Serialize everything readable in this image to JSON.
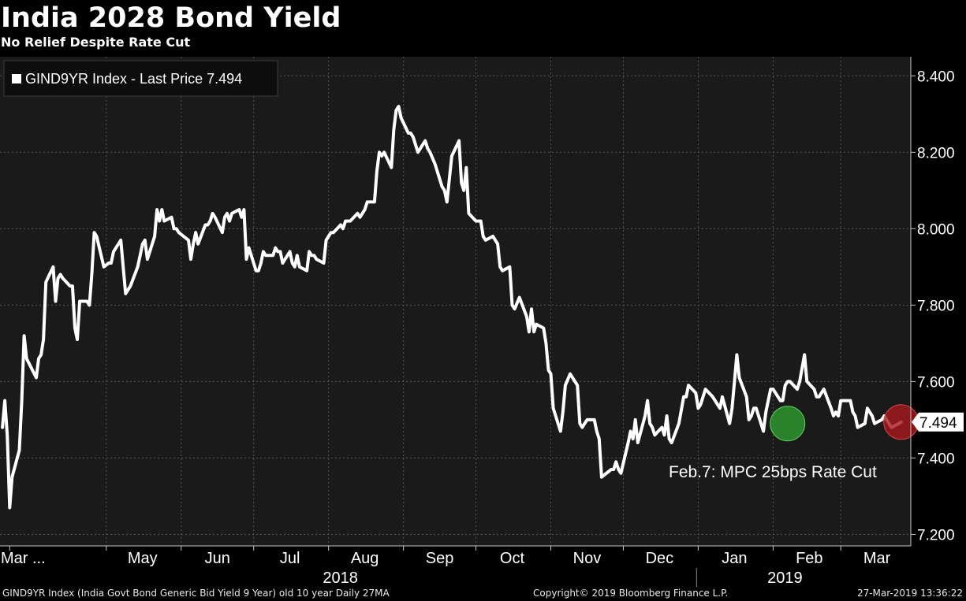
{
  "header": {
    "title": "India 2028 Bond Yield",
    "subtitle": "No Relief Despite Rate Cut"
  },
  "footer": {
    "left": "GIND9YR Index (India Govt Bond Generic Bid Yield 9 Year) old 10 year  Daily 27MA",
    "middle": "Copyright© 2019 Bloomberg Finance L.P.",
    "right": "27-Mar-2019 13:36:22"
  },
  "colors": {
    "background": "#000000",
    "plot_background": "#1a1a1a",
    "line": "#ffffff",
    "rate_cut_marker": "#2e9e2e",
    "last_price_marker": "#a8191b"
  },
  "chart_data": {
    "type": "line",
    "title": "India 2028 Bond Yield",
    "subtitle": "No Relief Despite Rate Cut",
    "ylim": [
      7.17,
      8.45
    ],
    "y_ticks": [
      7.2,
      7.4,
      7.6,
      7.8,
      8.0,
      8.2,
      8.4
    ],
    "y_tick_labels": [
      "7.200",
      "7.400",
      "7.600",
      "7.800",
      "8.000",
      "8.200",
      "8.400"
    ],
    "grid": true,
    "legend": {
      "placement": "top-left",
      "entries": [
        "GIND9YR Index - Last Price 7.494"
      ]
    },
    "last_price_label": "7.494",
    "x_month_labels": [
      {
        "label": "Mar ...",
        "date": "2018-03-22"
      },
      {
        "label": "May",
        "date": "2018-05-01"
      },
      {
        "label": "Jun",
        "date": "2018-06-01"
      },
      {
        "label": "Jul",
        "date": "2018-07-01"
      },
      {
        "label": "Aug",
        "date": "2018-08-01"
      },
      {
        "label": "Sep",
        "date": "2018-09-01"
      },
      {
        "label": "Oct",
        "date": "2018-10-01"
      },
      {
        "label": "Nov",
        "date": "2018-11-01"
      },
      {
        "label": "Dec",
        "date": "2018-12-01"
      },
      {
        "label": "Jan",
        "date": "2019-01-01"
      },
      {
        "label": "Feb",
        "date": "2019-02-01"
      },
      {
        "label": "Mar",
        "date": "2019-03-01"
      }
    ],
    "x_year_labels": [
      {
        "label": "2018",
        "date": "2018-08-01"
      },
      {
        "label": "2019",
        "date": "2019-02-01"
      }
    ],
    "year_separator_date": "2018-12-31",
    "annotations": [
      {
        "text": "Feb.7: MPC 25bps Rate Cut",
        "date": "2019-02-07",
        "value": 7.49,
        "marker": "rate_cut"
      },
      {
        "text": "",
        "date": "2019-03-26",
        "value": 7.494,
        "marker": "last_price"
      }
    ],
    "series": [
      {
        "name": "GIND9YR Index - Last Price 7.494",
        "points": [
          [
            "2018-03-19",
            7.48
          ],
          [
            "2018-03-20",
            7.55
          ],
          [
            "2018-03-21",
            7.46
          ],
          [
            "2018-03-22",
            7.27
          ],
          [
            "2018-03-23",
            7.35
          ],
          [
            "2018-03-26",
            7.42
          ],
          [
            "2018-03-27",
            7.55
          ],
          [
            "2018-03-28",
            7.72
          ],
          [
            "2018-03-29",
            7.66
          ],
          [
            "2018-04-02",
            7.61
          ],
          [
            "2018-04-03",
            7.66
          ],
          [
            "2018-04-04",
            7.67
          ],
          [
            "2018-04-05",
            7.71
          ],
          [
            "2018-04-06",
            7.86
          ],
          [
            "2018-04-09",
            7.9
          ],
          [
            "2018-04-10",
            7.81
          ],
          [
            "2018-04-11",
            7.87
          ],
          [
            "2018-04-12",
            7.88
          ],
          [
            "2018-04-13",
            7.87
          ],
          [
            "2018-04-16",
            7.85
          ],
          [
            "2018-04-17",
            7.85
          ],
          [
            "2018-04-18",
            7.74
          ],
          [
            "2018-04-19",
            7.71
          ],
          [
            "2018-04-20",
            7.81
          ],
          [
            "2018-04-23",
            7.81
          ],
          [
            "2018-04-24",
            7.8
          ],
          [
            "2018-04-25",
            7.88
          ],
          [
            "2018-04-26",
            7.99
          ],
          [
            "2018-04-27",
            7.98
          ],
          [
            "2018-04-30",
            7.9
          ],
          [
            "2018-05-02",
            7.91
          ],
          [
            "2018-05-03",
            7.91
          ],
          [
            "2018-05-04",
            7.94
          ],
          [
            "2018-05-07",
            7.97
          ],
          [
            "2018-05-08",
            7.9
          ],
          [
            "2018-05-09",
            7.83
          ],
          [
            "2018-05-10",
            7.84
          ],
          [
            "2018-05-11",
            7.85
          ],
          [
            "2018-05-14",
            7.9
          ],
          [
            "2018-05-15",
            7.93
          ],
          [
            "2018-05-16",
            7.96
          ],
          [
            "2018-05-17",
            7.97
          ],
          [
            "2018-05-18",
            7.92
          ],
          [
            "2018-05-21",
            7.98
          ],
          [
            "2018-05-22",
            8.05
          ],
          [
            "2018-05-23",
            8.02
          ],
          [
            "2018-05-24",
            8.05
          ],
          [
            "2018-05-25",
            8.02
          ],
          [
            "2018-05-28",
            8.03
          ],
          [
            "2018-05-29",
            8.0
          ],
          [
            "2018-05-30",
            8.0
          ],
          [
            "2018-05-31",
            7.99
          ],
          [
            "2018-06-04",
            7.97
          ],
          [
            "2018-06-05",
            7.92
          ],
          [
            "2018-06-06",
            7.96
          ],
          [
            "2018-06-07",
            7.99
          ],
          [
            "2018-06-08",
            7.96
          ],
          [
            "2018-06-11",
            8.01
          ],
          [
            "2018-06-12",
            8.01
          ],
          [
            "2018-06-13",
            8.02
          ],
          [
            "2018-06-14",
            8.04
          ],
          [
            "2018-06-15",
            8.03
          ],
          [
            "2018-06-18",
            7.99
          ],
          [
            "2018-06-19",
            8.03
          ],
          [
            "2018-06-20",
            8.04
          ],
          [
            "2018-06-21",
            8.02
          ],
          [
            "2018-06-22",
            8.04
          ],
          [
            "2018-06-25",
            8.05
          ],
          [
            "2018-06-26",
            8.03
          ],
          [
            "2018-06-27",
            8.05
          ],
          [
            "2018-06-28",
            7.92
          ],
          [
            "2018-06-29",
            7.95
          ],
          [
            "2018-07-02",
            7.89
          ],
          [
            "2018-07-03",
            7.89
          ],
          [
            "2018-07-04",
            7.91
          ],
          [
            "2018-07-05",
            7.94
          ],
          [
            "2018-07-06",
            7.93
          ],
          [
            "2018-07-09",
            7.93
          ],
          [
            "2018-07-10",
            7.95
          ],
          [
            "2018-07-11",
            7.94
          ],
          [
            "2018-07-12",
            7.94
          ],
          [
            "2018-07-13",
            7.91
          ],
          [
            "2018-07-16",
            7.94
          ],
          [
            "2018-07-17",
            7.91
          ],
          [
            "2018-07-18",
            7.9
          ],
          [
            "2018-07-19",
            7.93
          ],
          [
            "2018-07-20",
            7.9
          ],
          [
            "2018-07-23",
            7.89
          ],
          [
            "2018-07-24",
            7.94
          ],
          [
            "2018-07-25",
            7.93
          ],
          [
            "2018-07-26",
            7.93
          ],
          [
            "2018-07-27",
            7.92
          ],
          [
            "2018-07-30",
            7.91
          ],
          [
            "2018-07-31",
            7.97
          ],
          [
            "2018-08-01",
            7.98
          ],
          [
            "2018-08-02",
            7.99
          ],
          [
            "2018-08-03",
            7.99
          ],
          [
            "2018-08-06",
            8.01
          ],
          [
            "2018-08-07",
            8.0
          ],
          [
            "2018-08-08",
            8.02
          ],
          [
            "2018-08-09",
            8.02
          ],
          [
            "2018-08-10",
            8.02
          ],
          [
            "2018-08-13",
            8.04
          ],
          [
            "2018-08-14",
            8.03
          ],
          [
            "2018-08-16",
            8.05
          ],
          [
            "2018-08-17",
            8.07
          ],
          [
            "2018-08-20",
            8.07
          ],
          [
            "2018-08-21",
            8.15
          ],
          [
            "2018-08-22",
            8.2
          ],
          [
            "2018-08-23",
            8.19
          ],
          [
            "2018-08-24",
            8.2
          ],
          [
            "2018-08-27",
            8.16
          ],
          [
            "2018-08-28",
            8.26
          ],
          [
            "2018-08-29",
            8.31
          ],
          [
            "2018-08-30",
            8.32
          ],
          [
            "2018-08-31",
            8.29
          ],
          [
            "2018-09-03",
            8.25
          ],
          [
            "2018-09-04",
            8.25
          ],
          [
            "2018-09-05",
            8.24
          ],
          [
            "2018-09-06",
            8.22
          ],
          [
            "2018-09-07",
            8.2
          ],
          [
            "2018-09-10",
            8.23
          ],
          [
            "2018-09-11",
            8.21
          ],
          [
            "2018-09-12",
            8.2
          ],
          [
            "2018-09-14",
            8.17
          ],
          [
            "2018-09-17",
            8.11
          ],
          [
            "2018-09-18",
            8.1
          ],
          [
            "2018-09-19",
            8.07
          ],
          [
            "2018-09-21",
            8.19
          ],
          [
            "2018-09-24",
            8.23
          ],
          [
            "2018-09-25",
            8.12
          ],
          [
            "2018-09-26",
            8.1
          ],
          [
            "2018-09-27",
            8.16
          ],
          [
            "2018-09-28",
            8.04
          ],
          [
            "2018-10-01",
            8.02
          ],
          [
            "2018-10-03",
            8.02
          ],
          [
            "2018-10-04",
            7.98
          ],
          [
            "2018-10-05",
            7.97
          ],
          [
            "2018-10-08",
            7.98
          ],
          [
            "2018-10-09",
            7.97
          ],
          [
            "2018-10-10",
            7.96
          ],
          [
            "2018-10-11",
            7.9
          ],
          [
            "2018-10-12",
            7.89
          ],
          [
            "2018-10-15",
            7.9
          ],
          [
            "2018-10-16",
            7.8
          ],
          [
            "2018-10-17",
            7.79
          ],
          [
            "2018-10-19",
            7.82
          ],
          [
            "2018-10-22",
            7.77
          ],
          [
            "2018-10-23",
            7.73
          ],
          [
            "2018-10-24",
            7.79
          ],
          [
            "2018-10-25",
            7.73
          ],
          [
            "2018-10-26",
            7.75
          ],
          [
            "2018-10-29",
            7.74
          ],
          [
            "2018-10-30",
            7.7
          ],
          [
            "2018-10-31",
            7.63
          ],
          [
            "2018-11-01",
            7.62
          ],
          [
            "2018-11-02",
            7.53
          ],
          [
            "2018-11-05",
            7.47
          ],
          [
            "2018-11-06",
            7.52
          ],
          [
            "2018-11-07",
            7.59
          ],
          [
            "2018-11-09",
            7.62
          ],
          [
            "2018-11-12",
            7.59
          ],
          [
            "2018-11-13",
            7.49
          ],
          [
            "2018-11-14",
            7.48
          ],
          [
            "2018-11-15",
            7.49
          ],
          [
            "2018-11-16",
            7.5
          ],
          [
            "2018-11-19",
            7.5
          ],
          [
            "2018-11-20",
            7.47
          ],
          [
            "2018-11-21",
            7.45
          ],
          [
            "2018-11-22",
            7.35
          ],
          [
            "2018-11-26",
            7.37
          ],
          [
            "2018-11-27",
            7.37
          ],
          [
            "2018-11-28",
            7.39
          ],
          [
            "2018-11-29",
            7.37
          ],
          [
            "2018-11-30",
            7.36
          ],
          [
            "2018-12-03",
            7.44
          ],
          [
            "2018-12-04",
            7.47
          ],
          [
            "2018-12-05",
            7.45
          ],
          [
            "2018-12-06",
            7.5
          ],
          [
            "2018-12-07",
            7.44
          ],
          [
            "2018-12-10",
            7.51
          ],
          [
            "2018-12-11",
            7.55
          ],
          [
            "2018-12-12",
            7.49
          ],
          [
            "2018-12-13",
            7.48
          ],
          [
            "2018-12-14",
            7.46
          ],
          [
            "2018-12-17",
            7.48
          ],
          [
            "2018-12-18",
            7.46
          ],
          [
            "2018-12-19",
            7.51
          ],
          [
            "2018-12-20",
            7.45
          ],
          [
            "2018-12-21",
            7.44
          ],
          [
            "2018-12-24",
            7.49
          ],
          [
            "2018-12-26",
            7.56
          ],
          [
            "2018-12-27",
            7.56
          ],
          [
            "2018-12-28",
            7.59
          ],
          [
            "2018-12-31",
            7.57
          ],
          [
            "2019-01-01",
            7.53
          ],
          [
            "2019-01-02",
            7.54
          ],
          [
            "2019-01-03",
            7.56
          ],
          [
            "2019-01-04",
            7.58
          ],
          [
            "2019-01-07",
            7.56
          ],
          [
            "2019-01-08",
            7.55
          ],
          [
            "2019-01-09",
            7.54
          ],
          [
            "2019-01-10",
            7.53
          ],
          [
            "2019-01-11",
            7.56
          ],
          [
            "2019-01-14",
            7.49
          ],
          [
            "2019-01-15",
            7.53
          ],
          [
            "2019-01-16",
            7.6
          ],
          [
            "2019-01-17",
            7.67
          ],
          [
            "2019-01-18",
            7.61
          ],
          [
            "2019-01-21",
            7.56
          ],
          [
            "2019-01-22",
            7.5
          ],
          [
            "2019-01-23",
            7.51
          ],
          [
            "2019-01-24",
            7.53
          ],
          [
            "2019-01-25",
            7.53
          ],
          [
            "2019-01-28",
            7.47
          ],
          [
            "2019-01-29",
            7.52
          ],
          [
            "2019-01-30",
            7.55
          ],
          [
            "2019-01-31",
            7.58
          ],
          [
            "2019-02-01",
            7.58
          ],
          [
            "2019-02-04",
            7.55
          ],
          [
            "2019-02-05",
            7.55
          ],
          [
            "2019-02-06",
            7.59
          ],
          [
            "2019-02-07",
            7.6
          ],
          [
            "2019-02-08",
            7.6
          ],
          [
            "2019-02-11",
            7.58
          ],
          [
            "2019-02-12",
            7.6
          ],
          [
            "2019-02-14",
            7.67
          ],
          [
            "2019-02-15",
            7.6
          ],
          [
            "2019-02-18",
            7.58
          ],
          [
            "2019-02-19",
            7.56
          ],
          [
            "2019-02-20",
            7.56
          ],
          [
            "2019-02-21",
            7.57
          ],
          [
            "2019-02-22",
            7.58
          ],
          [
            "2019-02-25",
            7.53
          ],
          [
            "2019-02-26",
            7.51
          ],
          [
            "2019-02-27",
            7.52
          ],
          [
            "2019-02-28",
            7.51
          ],
          [
            "2019-03-01",
            7.55
          ],
          [
            "2019-03-05",
            7.55
          ],
          [
            "2019-03-06",
            7.52
          ],
          [
            "2019-03-07",
            7.51
          ],
          [
            "2019-03-08",
            7.48
          ],
          [
            "2019-03-11",
            7.49
          ],
          [
            "2019-03-12",
            7.53
          ],
          [
            "2019-03-13",
            7.52
          ],
          [
            "2019-03-14",
            7.51
          ],
          [
            "2019-03-15",
            7.49
          ],
          [
            "2019-03-18",
            7.5
          ],
          [
            "2019-03-19",
            7.51
          ],
          [
            "2019-03-20",
            7.5
          ],
          [
            "2019-03-22",
            7.48
          ],
          [
            "2019-03-25",
            7.49
          ],
          [
            "2019-03-26",
            7.494
          ]
        ]
      }
    ]
  }
}
